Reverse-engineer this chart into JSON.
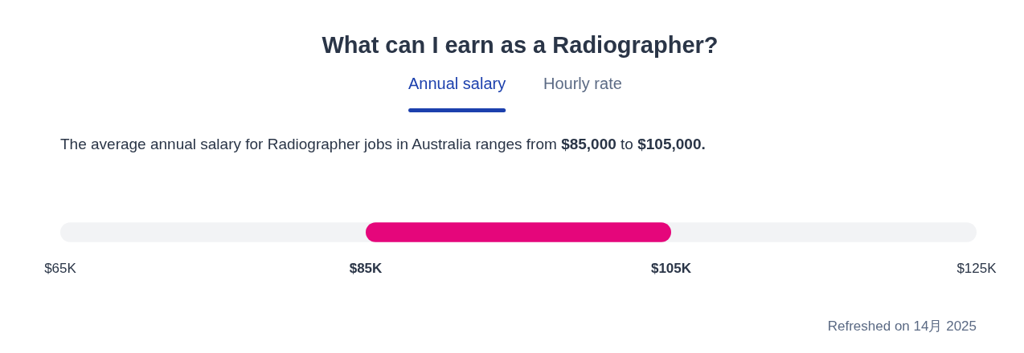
{
  "chart_data": {
    "type": "bar",
    "title": "What can I earn as a Radiographer?",
    "subtitle": "The average annual salary for Radiographer jobs in Australia ranges from $85,000 to $105,000.",
    "annotations": [
      "Annual salary",
      "Hourly rate",
      "Refreshed on 14月 2025"
    ],
    "orientation": "horizontal",
    "categories": [
      null
    ],
    "base": [
      85
    ],
    "values": [
      20
    ],
    "color": "#e5067b",
    "xlim": [
      65,
      125
    ],
    "xticks": [
      {
        "value": 65,
        "label": "$65K"
      },
      {
        "value": 85,
        "label": "$85K"
      },
      {
        "value": 105,
        "label": "$105K"
      },
      {
        "value": 125,
        "label": "$125K"
      }
    ],
    "tick_labels": "x"
  }
}
